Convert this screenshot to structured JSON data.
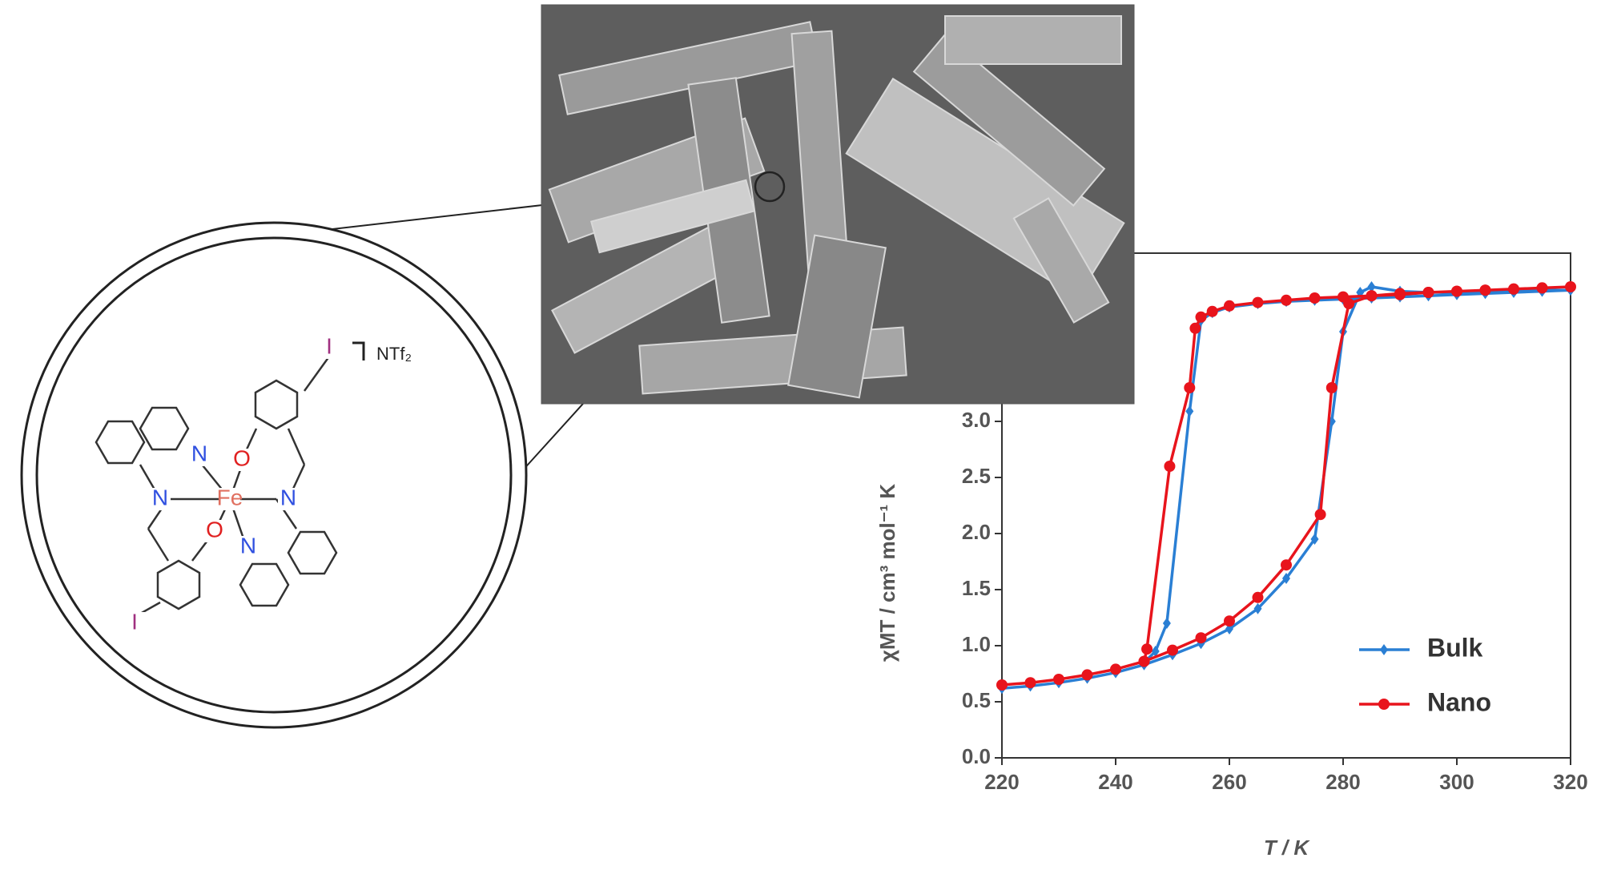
{
  "chart_data": {
    "type": "line",
    "x_label": "T / K",
    "y_label": "χMT / cm³ mol⁻¹ K",
    "xlim": [
      220,
      320
    ],
    "xticks": [
      220,
      240,
      260,
      280,
      300,
      320
    ],
    "ylim": [
      0,
      4.5
    ],
    "yticks": [
      {
        "value": 0,
        "label": "0.0"
      },
      {
        "value": 0.5,
        "label": "0.5"
      },
      {
        "value": 1,
        "label": "1.0"
      },
      {
        "value": 1.5,
        "label": "1.5"
      },
      {
        "value": 2,
        "label": "2.0"
      },
      {
        "value": 2.5,
        "label": "2.5"
      },
      {
        "value": 3,
        "label": "3.0"
      }
    ],
    "legend": "lower right",
    "series": [
      {
        "name": "Bulk",
        "color": "#2a7fd4",
        "marker": "diamond",
        "x": [
          220,
          225,
          230,
          235,
          240,
          245,
          250,
          255,
          260,
          265,
          270,
          275,
          278,
          280,
          283,
          285,
          290,
          295,
          300,
          305,
          310,
          315,
          320,
          315,
          310,
          305,
          300,
          295,
          290,
          285,
          280,
          275,
          270,
          265,
          260,
          257,
          255,
          253,
          249,
          247,
          245
        ],
        "values": [
          0.62,
          0.64,
          0.67,
          0.71,
          0.76,
          0.83,
          0.92,
          1.02,
          1.15,
          1.33,
          1.6,
          1.95,
          3.0,
          3.8,
          4.15,
          4.2,
          4.16,
          4.15,
          4.15,
          4.16,
          4.16,
          4.17,
          4.17,
          4.16,
          4.15,
          4.14,
          4.13,
          4.12,
          4.11,
          4.1,
          4.09,
          4.08,
          4.07,
          4.05,
          4.02,
          3.97,
          3.9,
          3.09,
          1.2,
          0.95,
          0.85
        ]
      },
      {
        "name": "Nano",
        "color": "#e8141c",
        "marker": "circle",
        "x": [
          220,
          225,
          230,
          235,
          240,
          245,
          250,
          255,
          260,
          265,
          270,
          276,
          278,
          281,
          285,
          290,
          295,
          300,
          305,
          310,
          315,
          320,
          315,
          310,
          305,
          300,
          295,
          290,
          285,
          280,
          275,
          270,
          265,
          260,
          257,
          255,
          254,
          253,
          249.5,
          245.5,
          245
        ],
        "values": [
          0.65,
          0.67,
          0.7,
          0.74,
          0.79,
          0.86,
          0.96,
          1.07,
          1.22,
          1.43,
          1.72,
          2.17,
          3.3,
          4.05,
          4.12,
          4.14,
          4.15,
          4.16,
          4.17,
          4.18,
          4.19,
          4.2,
          4.19,
          4.18,
          4.17,
          4.16,
          4.15,
          4.13,
          4.12,
          4.11,
          4.1,
          4.08,
          4.06,
          4.03,
          3.98,
          3.93,
          3.83,
          3.3,
          2.6,
          0.97,
          0.86
        ]
      }
    ]
  },
  "molecule": {
    "labels": [
      "I",
      "NTf₂",
      "N",
      "O",
      "N",
      "Fe",
      "N",
      "O",
      "N",
      "I"
    ]
  }
}
